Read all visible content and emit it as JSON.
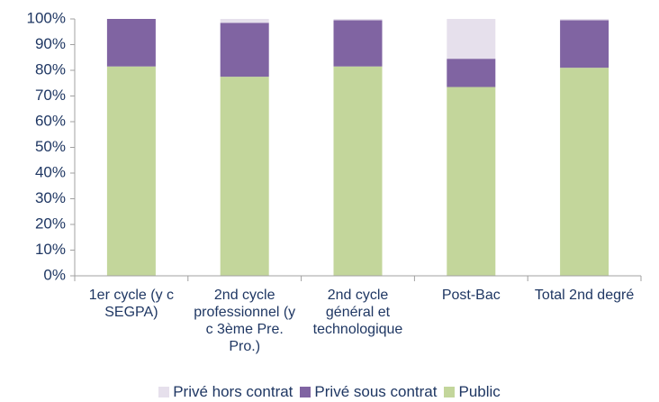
{
  "chart_data": {
    "type": "stacked_bar",
    "categories": [
      "1er cycle (y c SEGPA)",
      "2nd cycle professionnel (y c 3ème Pre. Pro.)",
      "2nd cycle général et technologique",
      "Post-Bac",
      "Total 2nd degré"
    ],
    "series": [
      {
        "name": "Privé hors contrat",
        "color": "#e6e0ec",
        "values": [
          0,
          1.5,
          0.5,
          15.5,
          0.5
        ]
      },
      {
        "name": "Privé sous contrat",
        "color": "#8064a2",
        "values": [
          18.5,
          21,
          18,
          11,
          18.5
        ]
      },
      {
        "name": "Public",
        "color": "#c3d69b",
        "values": [
          81.5,
          77.5,
          81.5,
          73.5,
          81
        ]
      }
    ],
    "ylim": [
      0,
      100
    ],
    "yticks": [
      {
        "value": 0,
        "label": "0%"
      },
      {
        "value": 10,
        "label": "10%"
      },
      {
        "value": 20,
        "label": "20%"
      },
      {
        "value": 30,
        "label": "30%"
      },
      {
        "value": 40,
        "label": "40%"
      },
      {
        "value": 50,
        "label": "50%"
      },
      {
        "value": 60,
        "label": "60%"
      },
      {
        "value": 70,
        "label": "70%"
      },
      {
        "value": 80,
        "label": "80%"
      },
      {
        "value": 90,
        "label": "90%"
      },
      {
        "value": 100,
        "label": "100%"
      }
    ],
    "legend": "bottom"
  }
}
